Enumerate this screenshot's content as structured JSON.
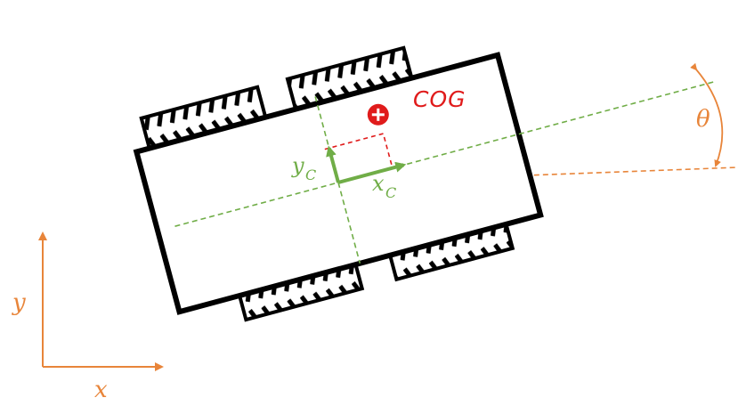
{
  "labels": {
    "global_x": "x",
    "global_y": "y",
    "body_x": "x",
    "body_x_sub": "C",
    "body_y": "y",
    "body_y_sub": "C",
    "cog": "COG",
    "theta": "θ"
  },
  "colors": {
    "orange": "#e8853a",
    "green": "#70ad47",
    "red": "#e01b1b",
    "black": "#000000"
  },
  "icons": {
    "cog_marker": "circle-plus-icon"
  }
}
